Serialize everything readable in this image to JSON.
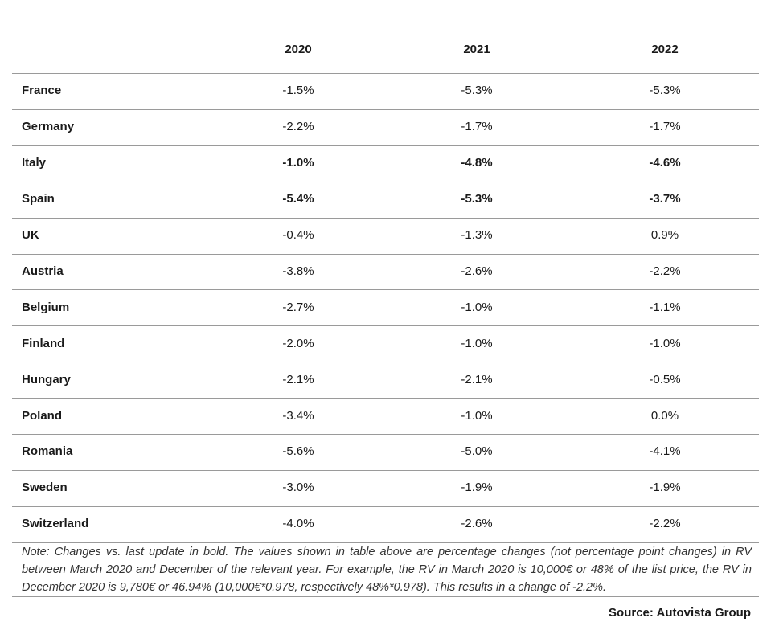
{
  "table": {
    "columns": [
      "2020",
      "2021",
      "2022"
    ],
    "rows": [
      {
        "label": "France",
        "values": [
          "-1.5%",
          "-5.3%",
          "-5.3%"
        ],
        "bold": false
      },
      {
        "label": "Germany",
        "values": [
          "-2.2%",
          "-1.7%",
          "-1.7%"
        ],
        "bold": false
      },
      {
        "label": "Italy",
        "values": [
          "-1.0%",
          "-4.8%",
          "-4.6%"
        ],
        "bold": true
      },
      {
        "label": "Spain",
        "values": [
          "-5.4%",
          "-5.3%",
          "-3.7%"
        ],
        "bold": true
      },
      {
        "label": "UK",
        "values": [
          "-0.4%",
          "-1.3%",
          "0.9%"
        ],
        "bold": false
      },
      {
        "label": "Austria",
        "values": [
          "-3.8%",
          "-2.6%",
          "-2.2%"
        ],
        "bold": false
      },
      {
        "label": "Belgium",
        "values": [
          "-2.7%",
          "-1.0%",
          "-1.1%"
        ],
        "bold": false
      },
      {
        "label": "Finland",
        "values": [
          "-2.0%",
          "-1.0%",
          "-1.0%"
        ],
        "bold": false
      },
      {
        "label": "Hungary",
        "values": [
          "-2.1%",
          "-2.1%",
          "-0.5%"
        ],
        "bold": false
      },
      {
        "label": "Poland",
        "values": [
          "-3.4%",
          "-1.0%",
          "0.0%"
        ],
        "bold": false
      },
      {
        "label": "Romania",
        "values": [
          "-5.6%",
          "-5.0%",
          "-4.1%"
        ],
        "bold": false
      },
      {
        "label": "Sweden",
        "values": [
          "-3.0%",
          "-1.9%",
          "-1.9%"
        ],
        "bold": false
      },
      {
        "label": "Switzerland",
        "values": [
          "-4.0%",
          "-2.6%",
          "-2.2%"
        ],
        "bold": false
      }
    ],
    "note": "Note: Changes vs. last update in bold. The values shown in table above are percentage changes (not percentage point changes) in RV between March 2020 and December of the relevant year. For example, the RV in March 2020 is 10,000€ or 48% of the list price, the RV in December 2020 is 9,780€ or 46.94% (10,000€*0.978, respectively 48%*0.978). This results in a change of -2.2%.",
    "source": "Source: Autovista Group"
  }
}
